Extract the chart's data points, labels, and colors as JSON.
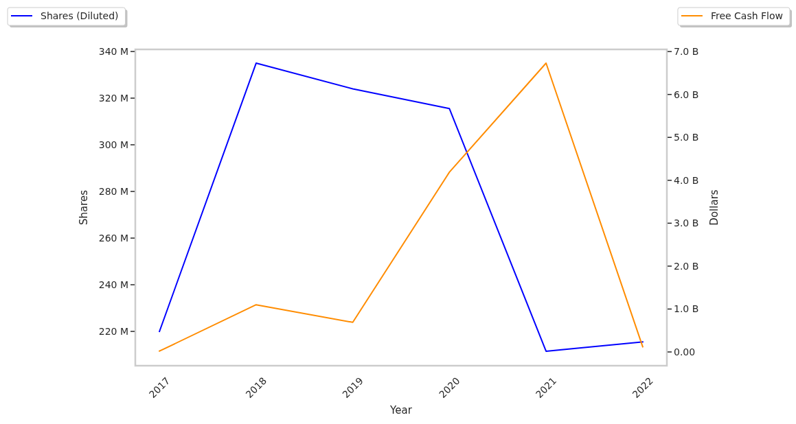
{
  "chart_data": {
    "type": "line",
    "categories": [
      "2017",
      "2018",
      "2019",
      "2020",
      "2021",
      "2022"
    ],
    "xlabel": "Year",
    "ylabel": "Shares",
    "y2label": "Dollars",
    "series": [
      {
        "name": "Shares (Diluted)",
        "color": "#0000ff",
        "values": [
          220,
          335,
          324,
          315.5,
          211.5,
          215.5
        ]
      },
      {
        "name": "Free Cash Flow",
        "color": "#ff8c00",
        "axis": "y2",
        "values": [
          0.02,
          1.1,
          0.69,
          4.19,
          6.73,
          0.12
        ]
      }
    ],
    "ylim": [
      205.3,
      340.9
    ],
    "yticks": [
      {
        "value": 220,
        "label": "220 M"
      },
      {
        "value": 240,
        "label": "240 M"
      },
      {
        "value": 260,
        "label": "260 M"
      },
      {
        "value": 280,
        "label": "280 M"
      },
      {
        "value": 300,
        "label": "300 M"
      },
      {
        "value": 320,
        "label": "320 M"
      },
      {
        "value": 340,
        "label": "340 M"
      }
    ],
    "y2lim": [
      -0.32,
      7.05
    ],
    "y2ticks": [
      {
        "value": 0,
        "label": "0.00"
      },
      {
        "value": 1,
        "label": "1.0 B"
      },
      {
        "value": 2,
        "label": "2.0 B"
      },
      {
        "value": 3,
        "label": "3.0 B"
      },
      {
        "value": 4,
        "label": "4.0 B"
      },
      {
        "value": 5,
        "label": "5.0 B"
      },
      {
        "value": 6,
        "label": "6.0 B"
      },
      {
        "value": 7,
        "label": "7.0 B"
      }
    ],
    "legend": "top"
  }
}
